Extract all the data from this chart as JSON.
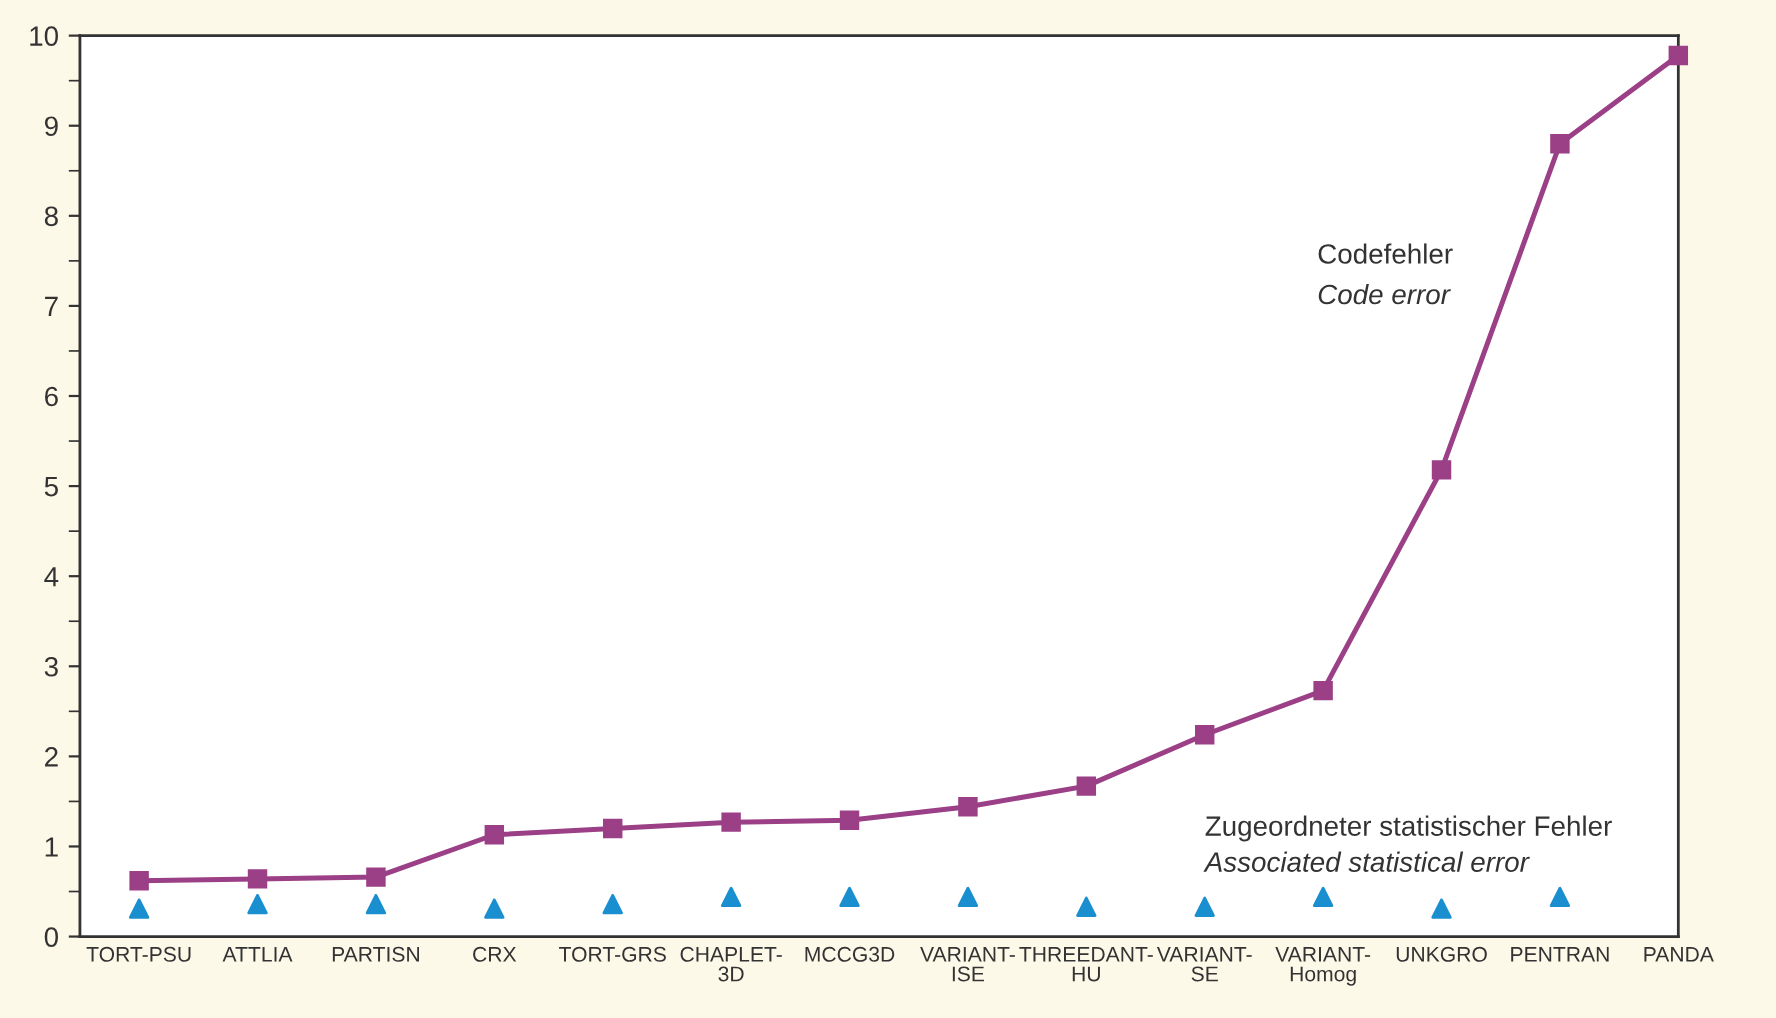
{
  "chart_data": {
    "type": "line",
    "categories": [
      "TORT-PSU",
      "ATTLIA",
      "PARTISN",
      "CRX",
      "TORT-GRS",
      "CHAPLET-\n3D",
      "MCCG3D",
      "VARIANT-\nISE",
      "THREEDANT-\nHU",
      "VARIANT-\nSE",
      "VARIANT-\nHomog",
      "UNKGRO",
      "PENTRAN",
      "PANDA"
    ],
    "series": [
      {
        "color": "#9b3f86",
        "marker": "square",
        "line_style": "solid",
        "values": [
          0.62,
          0.64,
          0.66,
          1.13,
          1.2,
          1.27,
          1.29,
          1.44,
          1.67,
          2.24,
          2.73,
          5.18,
          8.8,
          9.78
        ]
      },
      {
        "type": "scatter",
        "color": "#1a8fd0",
        "marker": "triangle",
        "values": [
          0.31,
          0.36,
          0.36,
          0.31,
          0.36,
          0.44,
          0.44,
          0.44,
          0.33,
          0.33,
          0.44,
          0.31,
          0.44,
          null
        ]
      }
    ],
    "ylim": [
      0,
      10
    ],
    "yticks": [
      0,
      1,
      2,
      3,
      4,
      5,
      6,
      7,
      8,
      9,
      10
    ],
    "grid": false,
    "legend": false,
    "annotations": [
      "Codefehler",
      "Code error",
      "Zugeordneter statistischer Fehler",
      "Associated statistical error"
    ]
  }
}
